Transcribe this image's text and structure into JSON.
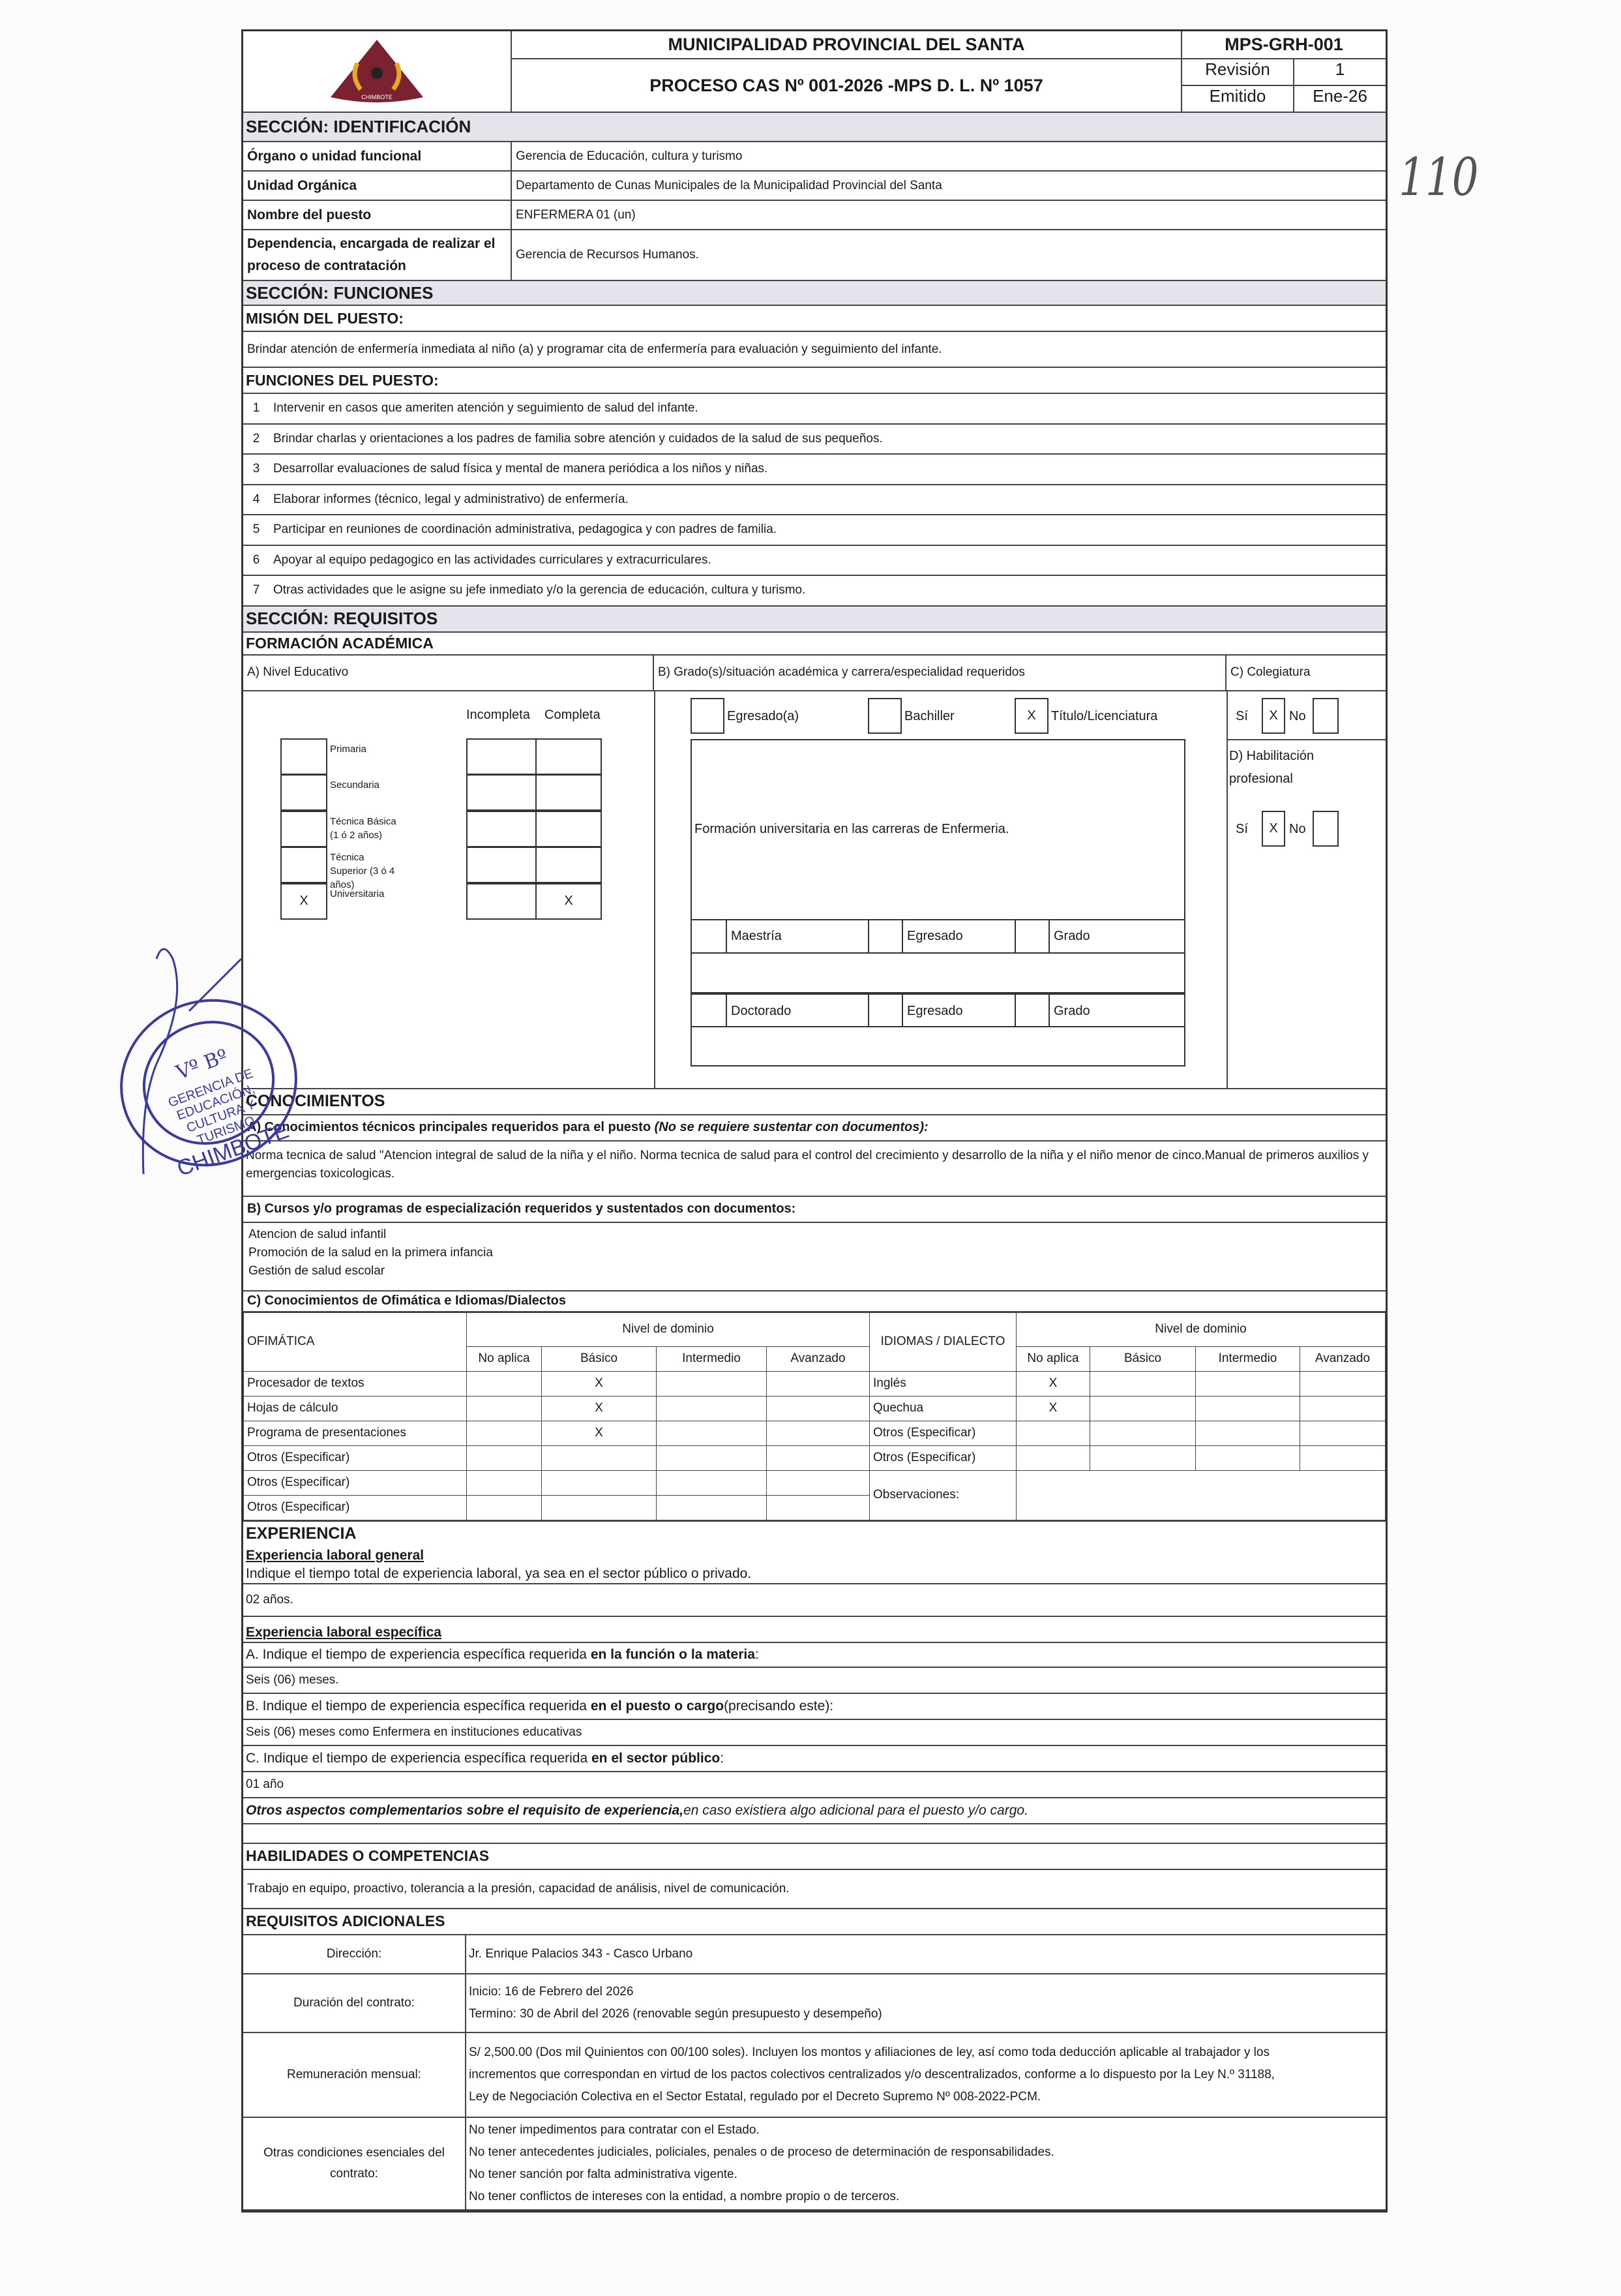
{
  "header": {
    "org": "MUNICIPALIDAD PROVINCIAL DEL SANTA",
    "process": "PROCESO CAS Nº 001-2026 -MPS D. L. Nº 1057",
    "code": "MPS-GRH-001",
    "revision_label": "Revisión",
    "revision_value": "1",
    "issued_label": "Emitido",
    "issued_value": "Ene-26",
    "logo_text": "CHIMBOTE"
  },
  "handwritten_page_number": "110",
  "identification": {
    "title": "SECCIÓN: IDENTIFICACIÓN",
    "rows": [
      {
        "label": "Órgano o unidad funcional",
        "value": "Gerencia de Educación, cultura y turismo"
      },
      {
        "label": "Unidad Orgánica",
        "value": "Departamento de Cunas Municipales de la Municipalidad Provincial del Santa"
      },
      {
        "label": "Nombre del puesto",
        "value": "ENFERMERA 01 (un)"
      },
      {
        "label": "Dependencia, encargada de realizar el proceso de contratación",
        "value": "Gerencia de Recursos Humanos."
      }
    ]
  },
  "functions": {
    "title": "SECCIÓN: FUNCIONES",
    "mission_title": "MISIÓN DEL PUESTO:",
    "mission": "Brindar atención de enfermería inmediata al niño (a) y programar cita de enfermería para evaluación y seguimiento del infante.",
    "list_title": "FUNCIONES DEL PUESTO:",
    "items": [
      {
        "n": "1",
        "text": "Intervenir en casos que ameriten atención y seguimiento de salud del infante."
      },
      {
        "n": "2",
        "text": "Brindar charlas y orientaciones a los padres de familia sobre atención y cuidados de la salud de sus pequeños."
      },
      {
        "n": "3",
        "text": "Desarrollar evaluaciones de salud física y mental de manera periódica a los niños y niñas."
      },
      {
        "n": "4",
        "text": "Elaborar informes (técnico, legal y administrativo) de enfermería."
      },
      {
        "n": "5",
        "text": "Participar en reuniones de coordinación administrativa, pedagogica y con padres de familia."
      },
      {
        "n": "6",
        "text": "Apoyar al equipo pedagogico en las actividades curriculares y extracurriculares."
      },
      {
        "n": "7",
        "text": "Otras actividades que le asigne su jefe inmediato y/o la gerencia de educación, cultura y turismo."
      }
    ]
  },
  "requirements": {
    "title": "SECCIÓN: REQUISITOS",
    "academic_title": "FORMACIÓN ACADÉMICA",
    "a_title": "A) Nivel Educativo",
    "incompleta": "Incompleta",
    "completa": "Completa",
    "levels": [
      {
        "label": "Primaria",
        "mark": "",
        "inc": "",
        "comp": ""
      },
      {
        "label": "Secundaria",
        "mark": "",
        "inc": "",
        "comp": ""
      },
      {
        "label": "Técnica Básica (1 ó 2 años)",
        "mark": "",
        "inc": "",
        "comp": ""
      },
      {
        "label": "Técnica Superior (3 ó 4 años)",
        "mark": "",
        "inc": "",
        "comp": ""
      },
      {
        "label": "Universitaria",
        "mark": "X",
        "inc": "",
        "comp": "X"
      }
    ],
    "b_title": "B) Grado(s)/situación académica y carrera/especialidad requeridos",
    "grades": [
      {
        "label": "Egresado(a)",
        "mark": ""
      },
      {
        "label": "Bachiller",
        "mark": ""
      },
      {
        "label": "Título/Licenciatura",
        "mark": "X"
      }
    ],
    "career": "Formación universitaria en las carreras de Enfermeria.",
    "maestria": "Maestría",
    "doctorado": "Doctorado",
    "egresado": "Egresado",
    "grado": "Grado",
    "c_title": "C)  Colegiatura",
    "si": "Sí",
    "no": "No",
    "colegiatura_si": "X",
    "colegiatura_no": "",
    "d_title": "D) Habilitación profesional",
    "habilitacion_si": "X",
    "habilitacion_no": ""
  },
  "knowledge": {
    "title": "CONOCIMIENTOS",
    "a_title": "A) Conocimientos técnicos principales requeridos para el puesto",
    "a_note": "(No se requiere sustentar con documentos):",
    "a_text": "Norma tecnica de salud \"Atencion integral de salud de la niña y el niño. Norma tecnica de salud para  el control del crecimiento y desarrollo de la niña y el niño menor de cinco.Manual de primeros auxilios y emergencias toxicologicas.",
    "b_title": "B) Cursos y/o programas de especialización requeridos y sustentados con documentos:",
    "courses": [
      "Atencion de salud infantil",
      "Promoción de la salud en la primera infancia",
      "Gestión de salud escolar"
    ],
    "c_title": "C) Conocimientos de Ofimática e Idiomas/Dialectos",
    "ofimatica": "OFIMÁTICA",
    "idiomas": "IDIOMAS / DIALECTO",
    "nivel": "Nivel de dominio",
    "levels": [
      "No aplica",
      "Básico",
      "Intermedio",
      "Avanzado"
    ],
    "office_rows": [
      {
        "label": "Procesador de textos",
        "m": [
          "",
          "X",
          "",
          ""
        ]
      },
      {
        "label": "Hojas de cálculo",
        "m": [
          "",
          "X",
          "",
          ""
        ]
      },
      {
        "label": "Programa de presentaciones",
        "m": [
          "",
          "X",
          "",
          ""
        ]
      },
      {
        "label": "Otros (Especificar)",
        "m": [
          "",
          "",
          "",
          ""
        ]
      },
      {
        "label": "Otros (Especificar)",
        "m": [
          "",
          "",
          "",
          ""
        ]
      },
      {
        "label": "Otros (Especificar)",
        "m": [
          "",
          "",
          "",
          ""
        ]
      }
    ],
    "lang_rows": [
      {
        "label": "Inglés",
        "m": [
          "X",
          "",
          "",
          ""
        ]
      },
      {
        "label": "Quechua",
        "m": [
          "X",
          "",
          "",
          ""
        ]
      },
      {
        "label": "Otros (Especificar)",
        "m": [
          "",
          "",
          "",
          ""
        ]
      },
      {
        "label": "Otros (Especificar)",
        "m": [
          "",
          "",
          "",
          ""
        ]
      }
    ],
    "observaciones": "Observaciones:"
  },
  "experience": {
    "title": "EXPERIENCIA",
    "general_title": "Experiencia laboral general",
    "general_q": "Indique el tiempo total de experiencia laboral, ya sea en el sector público o privado.",
    "general_a": "02 años.",
    "specific_title": "Experiencia laboral específica",
    "a_q1": "A. Indique el tiempo de experiencia específica requerida ",
    "a_q2": "en la función o la materia",
    "a_q3": ":",
    "a_a": "Seis (06) meses.",
    "b_q1": "B. Indique el tiempo de experiencia específica requerida ",
    "b_q2": "en el puesto o cargo",
    "b_q3": " (precisando este):",
    "b_a": "Seis (06) meses como Enfermera en instituciones educativas",
    "c_q1": "C. Indique el tiempo de experiencia específica requerida ",
    "c_q2": "en el sector público",
    "c_q3": ":",
    "c_a": "01 año",
    "other_bold": "Otros aspectos complementarios sobre el requisito de experiencia,",
    "other_rest": "  en caso existiera algo adicional para el puesto y/o cargo."
  },
  "skills": {
    "title": "HABILIDADES O COMPETENCIAS",
    "text": "Trabajo en equipo, proactivo, tolerancia a la presión, capacidad de análisis, nivel de comunicación."
  },
  "additional": {
    "title": "REQUISITOS ADICIONALES",
    "rows": [
      {
        "label": "Dirección:",
        "lines": [
          "Jr. Enrique Palacios 343 - Casco Urbano"
        ]
      },
      {
        "label": "Duración del contrato:",
        "lines": [
          "Inicio:  16 de Febrero del 2026",
          "Termino: 30 de Abril del 2026 (renovable según presupuesto y desempeño)"
        ]
      },
      {
        "label": "Remuneración mensual:",
        "lines": [
          "S/ 2,500.00 (Dos mil Quinientos con 00/100 soles). Incluyen los montos y afiliaciones de ley, así como toda deducción aplicable al trabajador y los",
          "incrementos que correspondan en virtud de los pactos colectivos centralizados y/o descentralizados, conforme a lo dispuesto por la Ley N.º 31188,",
          "Ley de Negociación Colectiva en el Sector Estatal, regulado por el Decreto Supremo Nº 008-2022-PCM."
        ]
      },
      {
        "label": "Otras condiciones esenciales del contrato:",
        "lines": [
          "No tener impedimentos para contratar con el Estado.",
          "No tener antecedentes judiciales, policiales, penales o de proceso de determinación de responsabilidades.",
          "No tener sanción por falta administrativa vigente.",
          "No tener conflictos de intereses con la entidad, a nombre propio o de terceros."
        ]
      }
    ]
  },
  "stamp": {
    "text": "MUNICIPALIDAD PROVINCIAL DEL SANTA - CHIMBOTE - Vº Bº GERENCIA DE EDUCACIÓN, CULTURA Y TURISMO",
    "color": "#3a3aa0"
  }
}
